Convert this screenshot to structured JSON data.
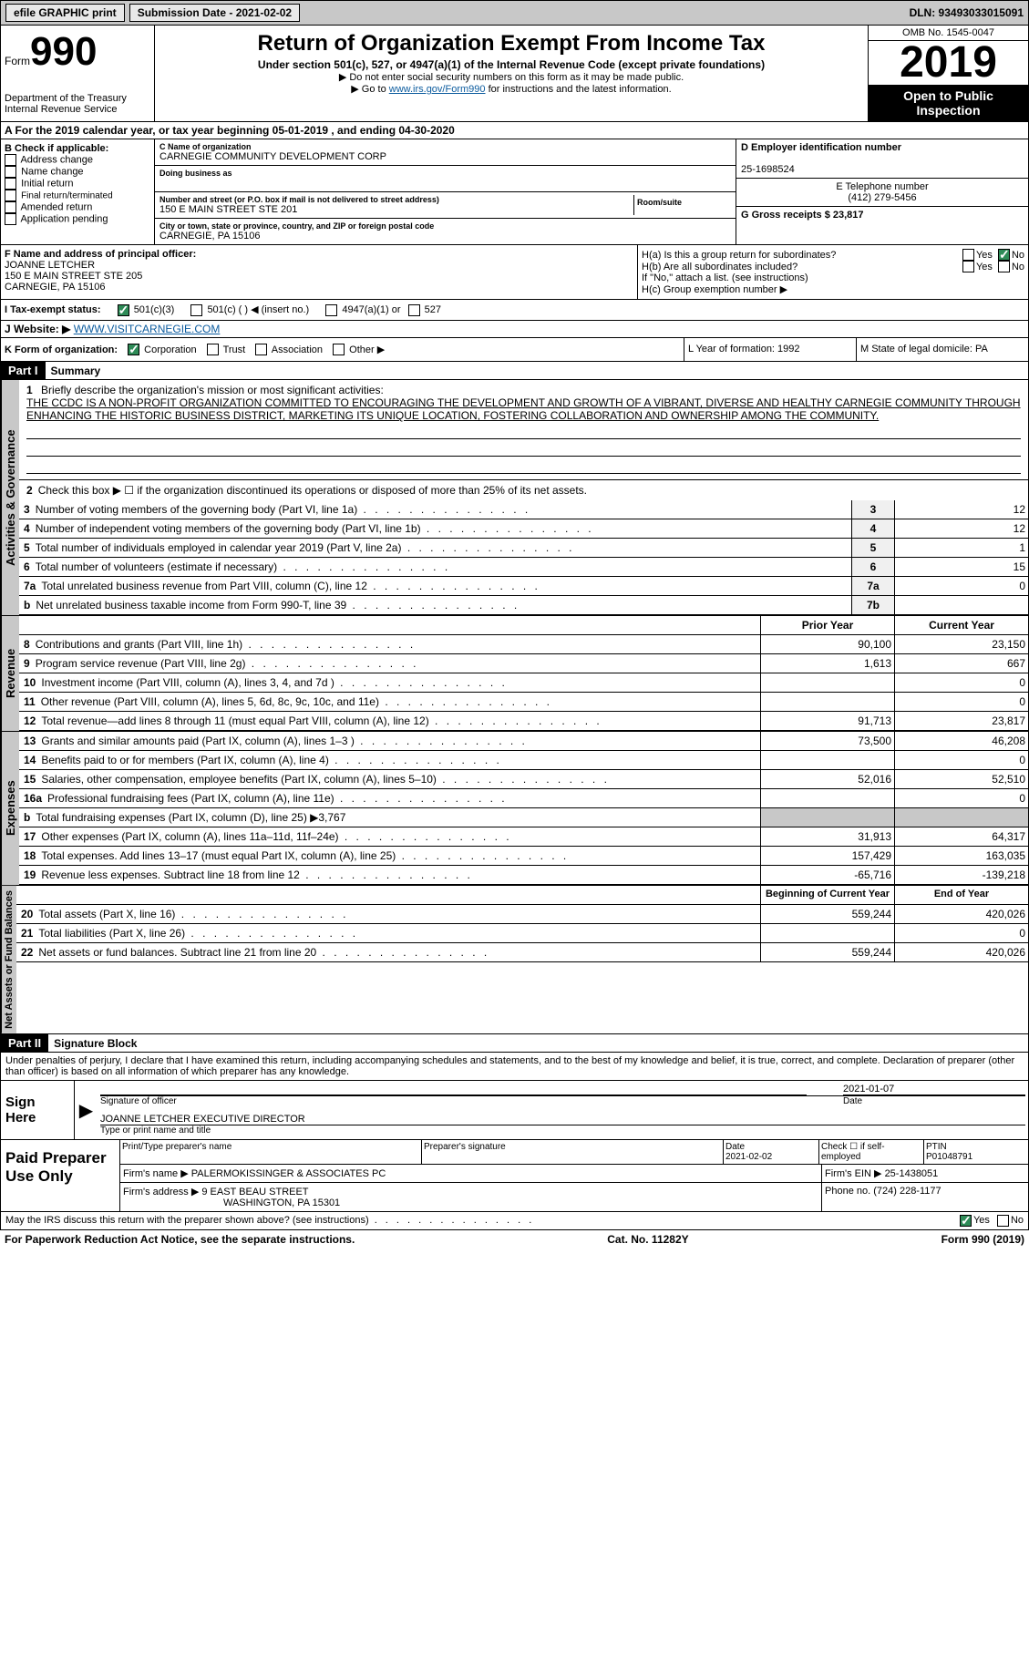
{
  "top_bar": {
    "efile_label": "efile GRAPHIC print",
    "sub_date_label": "Submission Date - 2021-02-02",
    "dln": "DLN: 93493033015091"
  },
  "header": {
    "form_word": "Form",
    "form_num": "990",
    "dept": "Department of the Treasury\nInternal Revenue Service",
    "title": "Return of Organization Exempt From Income Tax",
    "subtitle": "Under section 501(c), 527, or 4947(a)(1) of the Internal Revenue Code (except private foundations)",
    "note1": "▶ Do not enter social security numbers on this form as it may be made public.",
    "note2_pre": "▶ Go to ",
    "note2_link": "www.irs.gov/Form990",
    "note2_post": " for instructions and the latest information.",
    "omb": "OMB No. 1545-0047",
    "year": "2019",
    "otp": "Open to Public Inspection"
  },
  "row_a": "A For the 2019 calendar year, or tax year beginning 05-01-2019   , and ending 04-30-2020",
  "box_b": {
    "heading": "B Check if applicable:",
    "items": [
      "Address change",
      "Name change",
      "Initial return",
      "Final return/terminated",
      "Amended return",
      "Application pending"
    ]
  },
  "box_c": {
    "name_label": "C Name of organization",
    "name": "CARNEGIE COMMUNITY DEVELOPMENT CORP",
    "dba_label": "Doing business as",
    "addr_label": "Number and street (or P.O. box if mail is not delivered to street address)",
    "room_label": "Room/suite",
    "addr": "150 E MAIN STREET STE 201",
    "city_label": "City or town, state or province, country, and ZIP or foreign postal code",
    "city": "CARNEGIE, PA  15106"
  },
  "box_d": {
    "ein_label": "D Employer identification number",
    "ein": "25-1698524",
    "phone_label": "E Telephone number",
    "phone": "(412) 279-5456",
    "gross_label": "G Gross receipts $ 23,817"
  },
  "box_f": {
    "label": "F Name and address of principal officer:",
    "name": "JOANNE LETCHER",
    "addr1": "150 E MAIN STREET STE 205",
    "addr2": "CARNEGIE, PA  15106"
  },
  "box_h": {
    "ha": "H(a)  Is this a group return for subordinates?",
    "hb": "H(b)  Are all subordinates included?",
    "hb_note": "If \"No,\" attach a list. (see instructions)",
    "hc": "H(c)  Group exemption number ▶"
  },
  "row_i": {
    "label": "I  Tax-exempt status:",
    "opts": [
      "501(c)(3)",
      "501(c) (  ) ◀ (insert no.)",
      "4947(a)(1) or",
      "527"
    ]
  },
  "row_j": {
    "label": "J  Website: ▶",
    "url": "WWW.VISITCARNEGIE.COM"
  },
  "row_k": {
    "label": "K Form of organization:",
    "opts": [
      "Corporation",
      "Trust",
      "Association",
      "Other ▶"
    ]
  },
  "row_lm": {
    "l": "L Year of formation: 1992",
    "m": "M State of legal domicile: PA"
  },
  "part1": {
    "header": "Part I",
    "title": "Summary",
    "q1_label": "1",
    "q1": "Briefly describe the organization's mission or most significant activities:",
    "q1_text": "THE CCDC IS A NON-PROFIT ORGANIZATION COMMITTED TO ENCOURAGING THE DEVELOPMENT AND GROWTH OF A VIBRANT, DIVERSE AND HEALTHY CARNEGIE COMMUNITY THROUGH ENHANCING THE HISTORIC BUSINESS DISTRICT, MARKETING ITS UNIQUE LOCATION, FOSTERING COLLABORATION AND OWNERSHIP AMONG THE COMMUNITY.",
    "q2": "Check this box ▶ ☐  if the organization discontinued its operations or disposed of more than 25% of its net assets.",
    "governance_label": "Activities & Governance",
    "revenue_label": "Revenue",
    "expenses_label": "Expenses",
    "netassets_label": "Net Assets or Fund Balances",
    "gov_rows": [
      {
        "n": "3",
        "t": "Number of voting members of the governing body (Part VI, line 1a)",
        "r": "3",
        "v": "12"
      },
      {
        "n": "4",
        "t": "Number of independent voting members of the governing body (Part VI, line 1b)",
        "r": "4",
        "v": "12"
      },
      {
        "n": "5",
        "t": "Total number of individuals employed in calendar year 2019 (Part V, line 2a)",
        "r": "5",
        "v": "1"
      },
      {
        "n": "6",
        "t": "Total number of volunteers (estimate if necessary)",
        "r": "6",
        "v": "15"
      },
      {
        "n": "7a",
        "t": "Total unrelated business revenue from Part VIII, column (C), line 12",
        "r": "7a",
        "v": "0"
      },
      {
        "n": "b",
        "t": "Net unrelated business taxable income from Form 990-T, line 39",
        "r": "7b",
        "v": ""
      }
    ],
    "col_headers": {
      "prior": "Prior Year",
      "current": "Current Year"
    },
    "rev_rows": [
      {
        "n": "8",
        "t": "Contributions and grants (Part VIII, line 1h)",
        "p": "90,100",
        "c": "23,150"
      },
      {
        "n": "9",
        "t": "Program service revenue (Part VIII, line 2g)",
        "p": "1,613",
        "c": "667"
      },
      {
        "n": "10",
        "t": "Investment income (Part VIII, column (A), lines 3, 4, and 7d )",
        "p": "",
        "c": "0"
      },
      {
        "n": "11",
        "t": "Other revenue (Part VIII, column (A), lines 5, 6d, 8c, 9c, 10c, and 11e)",
        "p": "",
        "c": "0"
      },
      {
        "n": "12",
        "t": "Total revenue—add lines 8 through 11 (must equal Part VIII, column (A), line 12)",
        "p": "91,713",
        "c": "23,817"
      }
    ],
    "exp_rows": [
      {
        "n": "13",
        "t": "Grants and similar amounts paid (Part IX, column (A), lines 1–3 )",
        "p": "73,500",
        "c": "46,208"
      },
      {
        "n": "14",
        "t": "Benefits paid to or for members (Part IX, column (A), line 4)",
        "p": "",
        "c": "0"
      },
      {
        "n": "15",
        "t": "Salaries, other compensation, employee benefits (Part IX, column (A), lines 5–10)",
        "p": "52,016",
        "c": "52,510"
      },
      {
        "n": "16a",
        "t": "Professional fundraising fees (Part IX, column (A), line 11e)",
        "p": "",
        "c": "0"
      },
      {
        "n": "b",
        "t": "Total fundraising expenses (Part IX, column (D), line 25) ▶3,767",
        "p": "__GRAY__",
        "c": "__GRAY__"
      },
      {
        "n": "17",
        "t": "Other expenses (Part IX, column (A), lines 11a–11d, 11f–24e)",
        "p": "31,913",
        "c": "64,317"
      },
      {
        "n": "18",
        "t": "Total expenses. Add lines 13–17 (must equal Part IX, column (A), line 25)",
        "p": "157,429",
        "c": "163,035"
      },
      {
        "n": "19",
        "t": "Revenue less expenses. Subtract line 18 from line 12",
        "p": "-65,716",
        "c": "-139,218"
      }
    ],
    "na_headers": {
      "b": "Beginning of Current Year",
      "e": "End of Year"
    },
    "na_rows": [
      {
        "n": "20",
        "t": "Total assets (Part X, line 16)",
        "p": "559,244",
        "c": "420,026"
      },
      {
        "n": "21",
        "t": "Total liabilities (Part X, line 26)",
        "p": "",
        "c": "0"
      },
      {
        "n": "22",
        "t": "Net assets or fund balances. Subtract line 21 from line 20",
        "p": "559,244",
        "c": "420,026"
      }
    ]
  },
  "part2": {
    "header": "Part II",
    "title": "Signature Block",
    "decl": "Under penalties of perjury, I declare that I have examined this return, including accompanying schedules and statements, and to the best of my knowledge and belief, it is true, correct, and complete. Declaration of preparer (other than officer) is based on all information of which preparer has any knowledge.",
    "sign_here": "Sign Here",
    "sig_officer": "Signature of officer",
    "sig_date": "2021-01-07",
    "date_label": "Date",
    "officer_name": "JOANNE LETCHER  EXECUTIVE DIRECTOR",
    "type_label": "Type or print name and title",
    "paid": "Paid Preparer Use Only",
    "prep_name_label": "Print/Type preparer's name",
    "prep_sig_label": "Preparer's signature",
    "prep_date_label": "Date",
    "prep_date": "2021-02-02",
    "check_if": "Check ☐ if self-employed",
    "ptin_label": "PTIN",
    "ptin": "P01048791",
    "firm_name_label": "Firm's name    ▶",
    "firm_name": "PALERMOKISSINGER & ASSOCIATES PC",
    "firm_ein_label": "Firm's EIN ▶",
    "firm_ein": "25-1438051",
    "firm_addr_label": "Firm's address ▶",
    "firm_addr": "9 EAST BEAU STREET",
    "firm_addr2": "WASHINGTON, PA  15301",
    "firm_phone_label": "Phone no.",
    "firm_phone": "(724) 228-1177"
  },
  "footer": {
    "discuss": "May the IRS discuss this return with the preparer shown above? (see instructions)",
    "notice": "For Paperwork Reduction Act Notice, see the separate instructions.",
    "cat": "Cat. No. 11282Y",
    "form": "Form 990 (2019)"
  },
  "yesno": {
    "yes": "Yes",
    "no": "No"
  }
}
